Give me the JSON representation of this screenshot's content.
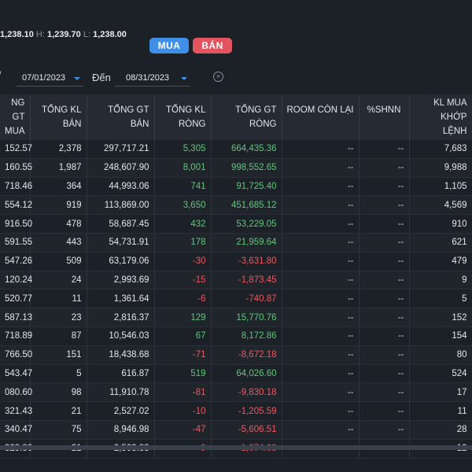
{
  "price_bar": {
    "close_value": "1,238.10",
    "high_label": "H:",
    "high_value": "1,239.70",
    "low_label": "L:",
    "low_value": "1,238.00"
  },
  "actions": {
    "buy_label": "MUA",
    "sell_label": "BÁN"
  },
  "filters": {
    "from_date": "07/01/2023",
    "to_label": "Đến",
    "to_date": "08/31/2023"
  },
  "table": {
    "headers": [
      [
        "NG GT",
        "MUA"
      ],
      [
        "TỔNG KL",
        "BÁN"
      ],
      [
        "TỔNG GT",
        "BÁN"
      ],
      [
        "TỔNG KL",
        "RÒNG"
      ],
      [
        "TỔNG GT",
        "RÒNG"
      ],
      [
        "ROOM CÒN LẠI",
        ""
      ],
      [
        "%SHNN",
        ""
      ],
      [
        "KL MUA",
        "KHỚP LỆNH"
      ]
    ],
    "rows": [
      [
        "152.57",
        "2,378",
        "297,717.21",
        "5,305",
        "664,435.36",
        "--",
        "--",
        "7,683"
      ],
      [
        "160.55",
        "1,987",
        "248,607.90",
        "8,001",
        "998,552.65",
        "--",
        "--",
        "9,988"
      ],
      [
        "718.46",
        "364",
        "44,993.06",
        "741",
        "91,725.40",
        "--",
        "--",
        "1,105"
      ],
      [
        "554.12",
        "919",
        "113,869.00",
        "3,650",
        "451,685.12",
        "--",
        "--",
        "4,569"
      ],
      "__ROWS_CONTINUE__"
    ]
  }
}
